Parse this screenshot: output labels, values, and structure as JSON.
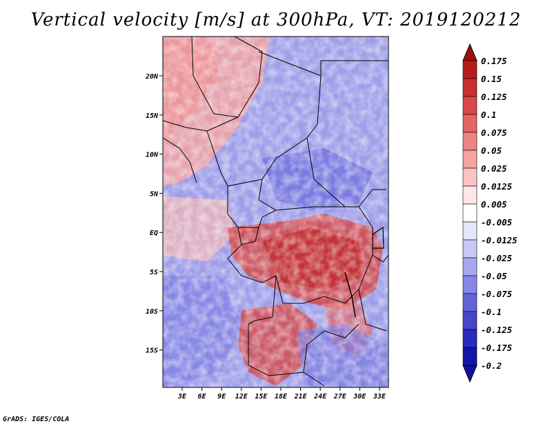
{
  "title": "Vertical velocity [m/s] at 300hPa, VT: 2019120212",
  "credit": "GrADS: IGES/COLA",
  "map": {
    "lon_labels": [
      "3E",
      "6E",
      "9E",
      "12E",
      "15E",
      "18E",
      "21E",
      "24E",
      "27E",
      "30E",
      "33E"
    ],
    "lat_labels": [
      "20N",
      "15N",
      "10N",
      "5N",
      "EQ",
      "5S",
      "10S",
      "15S"
    ]
  },
  "colorbar": {
    "labels": [
      "0.175",
      "0.15",
      "0.125",
      "0.1",
      "0.075",
      "0.05",
      "0.025",
      "0.0125",
      "0.005",
      "-0.005",
      "-0.0125",
      "-0.025",
      "-0.05",
      "-0.075",
      "-0.1",
      "-0.125",
      "-0.175",
      "-0.2"
    ],
    "colors": [
      "#a01010",
      "#b51d1d",
      "#c83030",
      "#d84848",
      "#e56464",
      "#ee8484",
      "#f5a4a4",
      "#fac4c4",
      "#fde6e6",
      "#ffffff",
      "#e6e6fb",
      "#c8c8f4",
      "#a8a8ee",
      "#8686e6",
      "#6464da",
      "#4646cc",
      "#2a2abc",
      "#1414a6",
      "#1010a0"
    ]
  }
}
